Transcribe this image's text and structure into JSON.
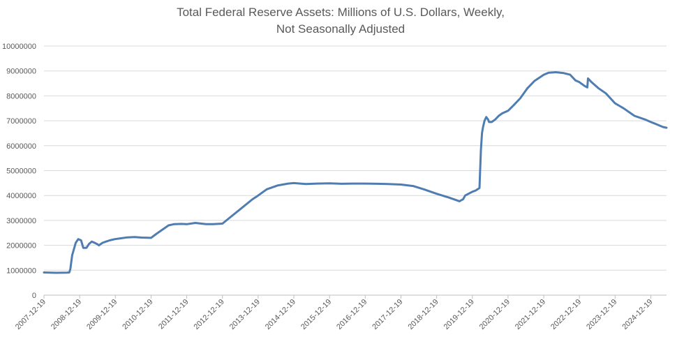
{
  "chart_data": {
    "type": "line",
    "title_lines": [
      "Total Federal Reserve Assets: Millions of U.S. Dollars, Weekly,",
      "Not Seasonally Adjusted"
    ],
    "xlabel": "",
    "ylabel": "",
    "ylim": [
      0,
      10000000
    ],
    "y_ticks": [
      "0",
      "1000000",
      "2000000",
      "3000000",
      "4000000",
      "5000000",
      "6000000",
      "7000000",
      "8000000",
      "9000000",
      "10000000"
    ],
    "x_ticks": [
      "2007-12-19",
      "2008-12-19",
      "2009-12-19",
      "2010-12-19",
      "2011-12-19",
      "2012-12-19",
      "2013-12-19",
      "2014-12-19",
      "2015-12-19",
      "2016-12-19",
      "2017-12-19",
      "2018-12-19",
      "2019-12-19",
      "2020-12-19",
      "2021-12-19",
      "2022-12-19",
      "2023-12-19",
      "2024-12-19"
    ],
    "grid": true,
    "legend": "none",
    "line_color": "#4f7db1",
    "series": [
      {
        "x": [
          2007.96,
          2008.3,
          2008.6,
          2008.67,
          2008.7,
          2008.75,
          2008.85,
          2008.92,
          2009.0,
          2009.06,
          2009.15,
          2009.22,
          2009.3,
          2009.38,
          2009.45,
          2009.5,
          2009.55,
          2009.6,
          2009.7,
          2009.8,
          2009.95,
          2010.1,
          2010.3,
          2010.5,
          2010.7,
          2010.96,
          2011.1,
          2011.3,
          2011.45,
          2011.6,
          2011.8,
          2011.96,
          2012.2,
          2012.5,
          2012.7,
          2012.96,
          2013.2,
          2013.5,
          2013.8,
          2013.96,
          2014.2,
          2014.5,
          2014.8,
          2014.96,
          2015.3,
          2015.6,
          2015.96,
          2016.3,
          2016.6,
          2016.96,
          2017.3,
          2017.6,
          2017.96,
          2018.3,
          2018.6,
          2018.96,
          2019.3,
          2019.6,
          2019.7,
          2019.76,
          2019.96,
          2020.05,
          2020.16,
          2020.2,
          2020.23,
          2020.26,
          2020.3,
          2020.35,
          2020.4,
          2020.43,
          2020.5,
          2020.6,
          2020.7,
          2020.8,
          2020.96,
          2021.1,
          2021.3,
          2021.5,
          2021.7,
          2021.96,
          2022.1,
          2022.3,
          2022.5,
          2022.7,
          2022.85,
          2022.96,
          2023.1,
          2023.18,
          2023.2,
          2023.3,
          2023.5,
          2023.7,
          2023.96,
          2024.2,
          2024.5,
          2024.8,
          2024.96,
          2025.1,
          2025.3,
          2025.4
        ],
        "values": [
          910000,
          895000,
          905000,
          910000,
          1050000,
          1600000,
          2100000,
          2250000,
          2200000,
          1900000,
          1900000,
          2050000,
          2150000,
          2100000,
          2050000,
          2000000,
          2050000,
          2100000,
          2150000,
          2200000,
          2250000,
          2280000,
          2320000,
          2330000,
          2310000,
          2300000,
          2450000,
          2650000,
          2800000,
          2850000,
          2860000,
          2850000,
          2900000,
          2850000,
          2850000,
          2870000,
          3150000,
          3500000,
          3850000,
          4000000,
          4250000,
          4400000,
          4480000,
          4500000,
          4460000,
          4480000,
          4490000,
          4470000,
          4480000,
          4480000,
          4470000,
          4460000,
          4440000,
          4380000,
          4250000,
          4070000,
          3920000,
          3770000,
          3850000,
          4000000,
          4150000,
          4200000,
          4300000,
          5800000,
          6500000,
          6750000,
          7000000,
          7150000,
          7050000,
          6950000,
          6950000,
          7050000,
          7200000,
          7300000,
          7400000,
          7600000,
          7900000,
          8300000,
          8600000,
          8850000,
          8930000,
          8950000,
          8920000,
          8850000,
          8620000,
          8550000,
          8400000,
          8340000,
          8700000,
          8550000,
          8300000,
          8100000,
          7700000,
          7500000,
          7200000,
          7050000,
          6950000,
          6870000,
          6750000,
          6720000
        ]
      }
    ]
  }
}
